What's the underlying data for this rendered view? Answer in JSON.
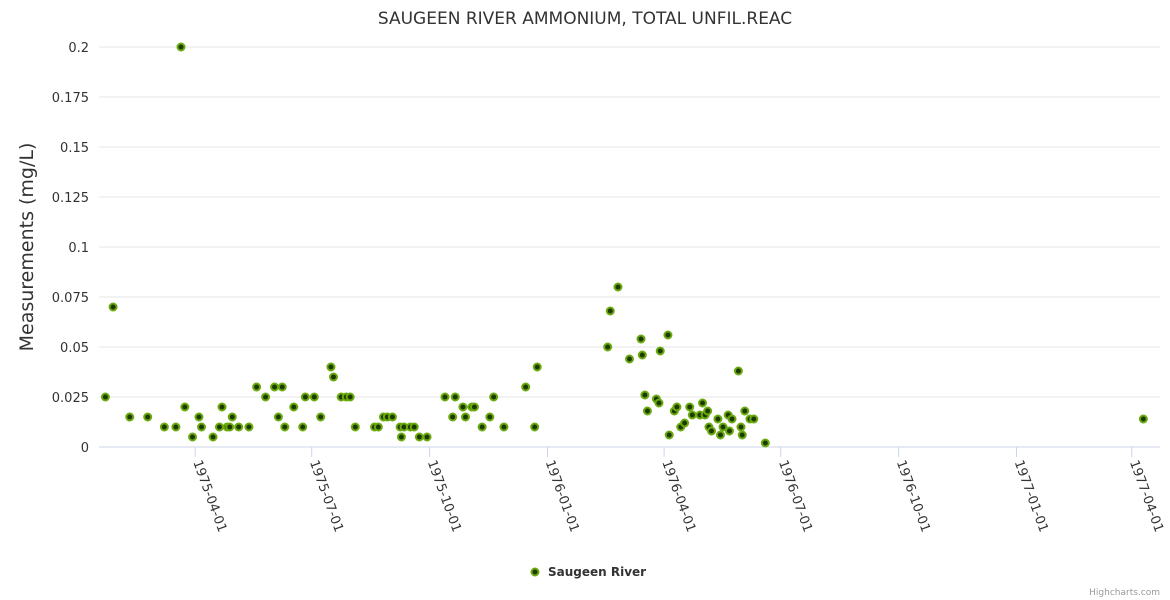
{
  "chart_data": {
    "type": "scatter",
    "title": "SAUGEEN RIVER AMMONIUM, TOTAL UNFIL.REAC",
    "ylabel": "Measurements (mg/L)",
    "xlabel": "",
    "ylim": [
      0,
      0.2
    ],
    "yticks": [
      "0",
      "0.025",
      "0.05",
      "0.075",
      "0.1",
      "0.125",
      "0.15",
      "0.175",
      "0.2"
    ],
    "xlim": [
      "1975-01-16",
      "1977-04-23"
    ],
    "xticks": [
      "1975-04-01",
      "1975-07-01",
      "1975-10-01",
      "1976-01-01",
      "1976-04-01",
      "1976-07-01",
      "1976-10-01",
      "1977-01-01",
      "1977-04-01"
    ],
    "grid": true,
    "legend_position": "bottom-center",
    "series": [
      {
        "name": "Saugeen River",
        "color": "#6aaa0f",
        "points": [
          [
            "1975-01-21",
            0.025
          ],
          [
            "1975-01-27",
            0.07
          ],
          [
            "1975-02-09",
            0.015
          ],
          [
            "1975-02-23",
            0.015
          ],
          [
            "1975-03-08",
            0.01
          ],
          [
            "1975-03-17",
            0.01
          ],
          [
            "1975-03-21",
            0.2
          ],
          [
            "1975-03-24",
            0.02
          ],
          [
            "1975-03-30",
            0.005
          ],
          [
            "1975-04-04",
            0.015
          ],
          [
            "1975-04-06",
            0.01
          ],
          [
            "1975-04-15",
            0.005
          ],
          [
            "1975-04-20",
            0.01
          ],
          [
            "1975-04-22",
            0.02
          ],
          [
            "1975-04-26",
            0.01
          ],
          [
            "1975-04-28",
            0.01
          ],
          [
            "1975-04-30",
            0.015
          ],
          [
            "1975-05-05",
            0.01
          ],
          [
            "1975-05-13",
            0.01
          ],
          [
            "1975-05-19",
            0.03
          ],
          [
            "1975-05-26",
            0.025
          ],
          [
            "1975-06-02",
            0.03
          ],
          [
            "1975-06-05",
            0.015
          ],
          [
            "1975-06-08",
            0.03
          ],
          [
            "1975-06-10",
            0.01
          ],
          [
            "1975-06-17",
            0.02
          ],
          [
            "1975-06-24",
            0.01
          ],
          [
            "1975-06-26",
            0.025
          ],
          [
            "1975-07-03",
            0.025
          ],
          [
            "1975-07-08",
            0.015
          ],
          [
            "1975-07-16",
            0.04
          ],
          [
            "1975-07-18",
            0.035
          ],
          [
            "1975-07-24",
            0.025
          ],
          [
            "1975-07-28",
            0.025
          ],
          [
            "1975-07-31",
            0.025
          ],
          [
            "1975-08-04",
            0.01
          ],
          [
            "1975-08-19",
            0.01
          ],
          [
            "1975-08-22",
            0.01
          ],
          [
            "1975-08-26",
            0.015
          ],
          [
            "1975-08-29",
            0.015
          ],
          [
            "1975-09-02",
            0.015
          ],
          [
            "1975-09-08",
            0.01
          ],
          [
            "1975-09-09",
            0.005
          ],
          [
            "1975-09-11",
            0.01
          ],
          [
            "1975-09-16",
            0.01
          ],
          [
            "1975-09-19",
            0.01
          ],
          [
            "1975-09-23",
            0.005
          ],
          [
            "1975-09-29",
            0.005
          ],
          [
            "1975-10-13",
            0.025
          ],
          [
            "1975-10-19",
            0.015
          ],
          [
            "1975-10-21",
            0.025
          ],
          [
            "1975-10-27",
            0.02
          ],
          [
            "1975-10-29",
            0.015
          ],
          [
            "1975-11-03",
            0.02
          ],
          [
            "1975-11-05",
            0.02
          ],
          [
            "1975-11-11",
            0.01
          ],
          [
            "1975-11-17",
            0.015
          ],
          [
            "1975-11-20",
            0.025
          ],
          [
            "1975-11-28",
            0.01
          ],
          [
            "1975-12-15",
            0.03
          ],
          [
            "1975-12-22",
            0.01
          ],
          [
            "1975-12-24",
            0.04
          ],
          [
            "1976-02-17",
            0.05
          ],
          [
            "1976-02-19",
            0.068
          ],
          [
            "1976-02-25",
            0.08
          ],
          [
            "1976-03-05",
            0.044
          ],
          [
            "1976-03-14",
            0.054
          ],
          [
            "1976-03-15",
            0.046
          ],
          [
            "1976-03-17",
            0.026
          ],
          [
            "1976-03-19",
            0.018
          ],
          [
            "1976-03-26",
            0.024
          ],
          [
            "1976-03-28",
            0.022
          ],
          [
            "1976-03-29",
            0.048
          ],
          [
            "1976-04-04",
            0.056
          ],
          [
            "1976-04-05",
            0.006
          ],
          [
            "1976-04-09",
            0.018
          ],
          [
            "1976-04-11",
            0.02
          ],
          [
            "1976-04-14",
            0.01
          ],
          [
            "1976-04-17",
            0.012
          ],
          [
            "1976-04-21",
            0.02
          ],
          [
            "1976-04-23",
            0.016
          ],
          [
            "1976-04-29",
            0.016
          ],
          [
            "1976-05-01",
            0.022
          ],
          [
            "1976-05-03",
            0.016
          ],
          [
            "1976-05-05",
            0.018
          ],
          [
            "1976-05-06",
            0.01
          ],
          [
            "1976-05-08",
            0.008
          ],
          [
            "1976-05-13",
            0.014
          ],
          [
            "1976-05-15",
            0.006
          ],
          [
            "1976-05-17",
            0.01
          ],
          [
            "1976-05-21",
            0.016
          ],
          [
            "1976-05-22",
            0.008
          ],
          [
            "1976-05-24",
            0.014
          ],
          [
            "1976-05-29",
            0.038
          ],
          [
            "1976-05-31",
            0.01
          ],
          [
            "1976-06-01",
            0.006
          ],
          [
            "1976-06-03",
            0.018
          ],
          [
            "1976-06-07",
            0.014
          ],
          [
            "1976-06-10",
            0.014
          ],
          [
            "1976-06-19",
            0.002
          ],
          [
            "1977-04-10",
            0.014
          ]
        ]
      }
    ]
  },
  "credits": "Highcharts.com"
}
